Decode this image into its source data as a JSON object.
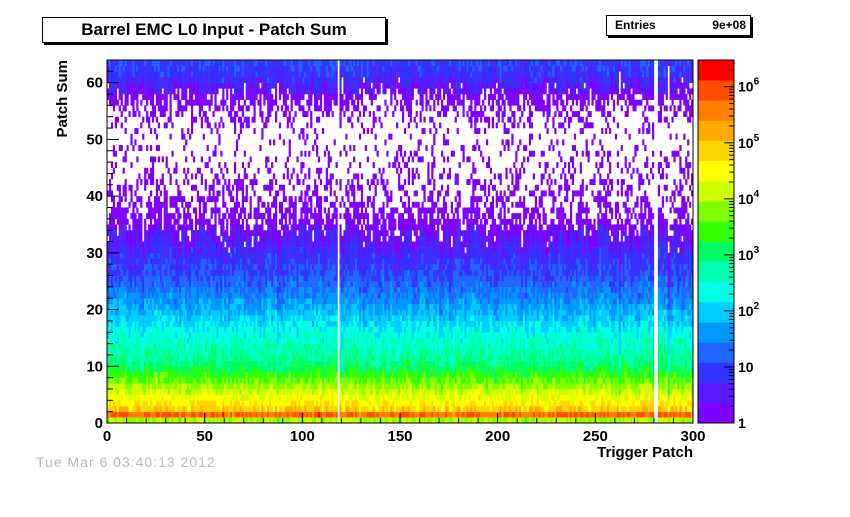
{
  "header": {
    "title": "Barrel EMC L0 Input - Patch Sum",
    "stats_label": "Entries",
    "stats_value": "9e+08"
  },
  "footer": {
    "date_text": "Tue Mar  6 03:40:13 2012"
  },
  "colors": {
    "palette": [
      "#7f00ff",
      "#5a1aff",
      "#3333ff",
      "#1f66ff",
      "#0099ff",
      "#00ccff",
      "#00ffe6",
      "#00ffb3",
      "#00ff66",
      "#33ff00",
      "#80ff00",
      "#ccff00",
      "#ffff00",
      "#ffd500",
      "#ffaa00",
      "#ff8000",
      "#ff4d00",
      "#ff0000"
    ],
    "frame": "#000000"
  },
  "chart_data": {
    "type": "heatmap",
    "title": "Barrel EMC L0 Input - Patch Sum",
    "xlabel": "Trigger Patch",
    "ylabel": "Patch Sum",
    "xlim": [
      0,
      300
    ],
    "ylim": [
      0,
      64
    ],
    "x_ticks": [
      0,
      50,
      100,
      150,
      200,
      250,
      300
    ],
    "y_ticks": [
      0,
      10,
      20,
      30,
      40,
      50,
      60
    ],
    "z_scale": "log",
    "z_ticks": [
      "1",
      "10",
      "10^2",
      "10^3",
      "10^4",
      "10^5",
      "10^6"
    ],
    "z_range": [
      1,
      3000000
    ],
    "n_x_bins": 300,
    "n_y_bins": 64,
    "entries": "9e+08",
    "counts_by_patch_sum": [
      {
        "patch_sum": 0,
        "count_approx": 30
      },
      {
        "patch_sum": 1,
        "count_approx": 3000000
      },
      {
        "patch_sum": 2,
        "count_approx": 100000
      },
      {
        "patch_sum": 5,
        "count_approx": 20000
      },
      {
        "patch_sum": 10,
        "count_approx": 1000
      },
      {
        "patch_sum": 15,
        "count_approx": 300
      },
      {
        "patch_sum": 20,
        "count_approx": 60
      },
      {
        "patch_sum": 25,
        "count_approx": 15
      },
      {
        "patch_sum": 30,
        "count_approx": 6
      },
      {
        "patch_sum": 35,
        "count_approx": 3
      },
      {
        "patch_sum": 40,
        "count_approx": 1.5
      },
      {
        "patch_sum": 50,
        "count_approx": 0.5
      },
      {
        "patch_sum": 63,
        "count_approx": 10
      }
    ],
    "empty_patches": [
      118,
      280,
      281
    ],
    "low_count_patches": [
      262,
      287
    ]
  }
}
